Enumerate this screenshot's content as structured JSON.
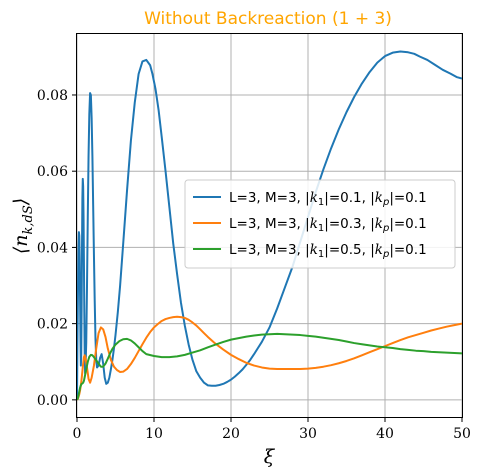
{
  "chart_data": {
    "type": "line",
    "title": "Without Backreaction (1 + 3)",
    "title_color": "#FFA500",
    "xlabel": "ξ",
    "ylabel": "⟨n_{k,dS}⟩",
    "xlim": [
      0,
      50
    ],
    "ylim": [
      -0.0045,
      0.096
    ],
    "x_ticks": [
      0,
      10,
      20,
      30,
      40,
      50
    ],
    "y_ticks": [
      0.0,
      0.02,
      0.04,
      0.06,
      0.08
    ],
    "x_tick_labels": [
      "0",
      "10",
      "20",
      "30",
      "40",
      "50"
    ],
    "y_tick_labels": [
      "0.00",
      "0.02",
      "0.04",
      "0.06",
      "0.08"
    ],
    "grid": true,
    "legend_position": "center-right",
    "series": [
      {
        "name": "L=3, M=3, |k_1|=0.1, |k_p|=0.1",
        "color": "#1f77b4",
        "x": [
          0,
          0.05,
          0.1,
          0.15,
          0.2,
          0.25,
          0.3,
          0.35,
          0.4,
          0.45,
          0.5,
          0.55,
          0.6,
          0.65,
          0.7,
          0.75,
          0.8,
          0.85,
          0.9,
          0.95,
          1.0,
          1.05,
          1.1,
          1.2,
          1.3,
          1.4,
          1.5,
          1.6,
          1.7,
          1.8,
          1.9,
          2.0,
          2.1,
          2.2,
          2.3,
          2.4,
          2.5,
          2.6,
          2.8,
          3.0,
          3.2,
          3.4,
          3.6,
          3.8,
          4.0,
          4.2,
          4.4,
          4.6,
          4.8,
          5.0,
          5.3,
          5.6,
          6.0,
          6.5,
          7.0,
          7.5,
          8.0,
          8.5,
          9.0,
          9.5,
          9.8,
          10.2,
          10.6,
          11.0,
          11.5,
          12.0,
          12.5,
          13.0,
          13.5,
          14.0,
          14.5,
          15.0,
          15.5,
          16.0,
          16.5,
          17.0,
          17.5,
          18.0,
          18.5,
          19.0,
          19.5,
          20.0,
          20.5,
          21.0,
          21.5,
          22.0,
          22.5,
          23.0,
          23.5,
          24.0,
          25.0,
          26.0,
          27.0,
          28.0,
          29.0,
          30.0,
          31.0,
          32.0,
          33.0,
          34.0,
          35.0,
          36.0,
          37.0,
          38.0,
          39.0,
          40.0,
          41.0,
          42.0,
          43.0,
          43.8,
          44.5,
          45.5,
          46.5,
          47.5,
          48.5,
          49.3,
          50.0
        ],
        "y": [
          0.0,
          0.014,
          0.024,
          0.033,
          0.04,
          0.044,
          0.043,
          0.037,
          0.027,
          0.016,
          0.009,
          0.012,
          0.024,
          0.04,
          0.053,
          0.058,
          0.056,
          0.048,
          0.036,
          0.023,
          0.012,
          0.007,
          0.008,
          0.015,
          0.03,
          0.048,
          0.064,
          0.075,
          0.0805,
          0.08,
          0.074,
          0.064,
          0.051,
          0.038,
          0.026,
          0.016,
          0.0105,
          0.0085,
          0.009,
          0.011,
          0.012,
          0.0095,
          0.0058,
          0.0042,
          0.0045,
          0.0058,
          0.008,
          0.0105,
          0.0135,
          0.017,
          0.023,
          0.03,
          0.041,
          0.055,
          0.068,
          0.078,
          0.0855,
          0.0888,
          0.0892,
          0.0878,
          0.0855,
          0.0815,
          0.076,
          0.069,
          0.06,
          0.0505,
          0.041,
          0.033,
          0.0255,
          0.0195,
          0.0145,
          0.0105,
          0.0075,
          0.0058,
          0.0045,
          0.0038,
          0.0037,
          0.0037,
          0.0039,
          0.0042,
          0.0047,
          0.0053,
          0.0061,
          0.007,
          0.008,
          0.0092,
          0.0105,
          0.012,
          0.0136,
          0.0152,
          0.019,
          0.024,
          0.0295,
          0.035,
          0.0415,
          0.048,
          0.0545,
          0.0605,
          0.066,
          0.071,
          0.0755,
          0.0795,
          0.083,
          0.086,
          0.0885,
          0.0902,
          0.0911,
          0.0914,
          0.0912,
          0.0908,
          0.0901,
          0.0892,
          0.0879,
          0.0866,
          0.0856,
          0.0847,
          0.0843
        ]
      },
      {
        "name": "L=3, M=3, |k_1|=0.3, |k_p|=0.1",
        "color": "#ff7f0e",
        "x": [
          0,
          0.1,
          0.2,
          0.3,
          0.4,
          0.5,
          0.6,
          0.7,
          0.8,
          0.9,
          1.0,
          1.1,
          1.3,
          1.5,
          1.7,
          1.9,
          2.2,
          2.5,
          2.8,
          3.1,
          3.4,
          3.7,
          4.0,
          4.4,
          4.8,
          5.2,
          5.6,
          6.0,
          6.5,
          7.0,
          7.5,
          8.0,
          8.5,
          9.0,
          9.5,
          10.0,
          10.5,
          11.0,
          11.5,
          12.0,
          12.5,
          13.0,
          13.5,
          14.0,
          14.5,
          15.0,
          15.5,
          16.0,
          16.5,
          17.0,
          18.0,
          19.0,
          20.0,
          21.0,
          22.0,
          23.0,
          24.0,
          25.0,
          26.0,
          27.0,
          28.0,
          29.0,
          30.0,
          31.0,
          32.0,
          33.0,
          34.0,
          35.0,
          36.0,
          37.0,
          38.0,
          39.0,
          40.0,
          41.0,
          42.0,
          43.0,
          44.0,
          45.0,
          46.0,
          47.0,
          48.0,
          49.0,
          50.0
        ],
        "y": [
          0.0,
          0.0002,
          0.0008,
          0.0015,
          0.0025,
          0.0038,
          0.0055,
          0.0075,
          0.0095,
          0.0112,
          0.0117,
          0.011,
          0.0085,
          0.0055,
          0.0045,
          0.0058,
          0.009,
          0.0135,
          0.0175,
          0.019,
          0.0185,
          0.0165,
          0.0135,
          0.0105,
          0.0087,
          0.0078,
          0.0073,
          0.0074,
          0.0081,
          0.0094,
          0.011,
          0.0128,
          0.0146,
          0.0163,
          0.0178,
          0.019,
          0.0199,
          0.0207,
          0.0212,
          0.0215,
          0.0217,
          0.0218,
          0.0217,
          0.0215,
          0.021,
          0.0203,
          0.0195,
          0.0185,
          0.0175,
          0.0165,
          0.0147,
          0.0132,
          0.0118,
          0.0107,
          0.0097,
          0.009,
          0.0085,
          0.0082,
          0.0081,
          0.0081,
          0.0081,
          0.0081,
          0.0082,
          0.0084,
          0.0087,
          0.0091,
          0.0096,
          0.0102,
          0.0109,
          0.0117,
          0.0125,
          0.0133,
          0.0141,
          0.0149,
          0.0157,
          0.0164,
          0.017,
          0.0176,
          0.0182,
          0.0187,
          0.0192,
          0.0196,
          0.02
        ]
      },
      {
        "name": "L=3, M=3, |k_1|=0.5, |k_p|=0.1",
        "color": "#2ca02c",
        "x": [
          0,
          0.1,
          0.2,
          0.3,
          0.4,
          0.5,
          0.6,
          0.7,
          0.8,
          0.9,
          1.0,
          1.2,
          1.4,
          1.6,
          1.8,
          2.0,
          2.2,
          2.5,
          2.8,
          3.1,
          3.4,
          3.7,
          4.0,
          4.3,
          4.6,
          5.0,
          5.5,
          6.0,
          6.5,
          7.0,
          7.5,
          8.0,
          8.5,
          9.0,
          10.0,
          11.0,
          12.0,
          13.0,
          14.0,
          15.0,
          16.0,
          17.0,
          18.0,
          19.0,
          20.0,
          21.0,
          22.0,
          23.0,
          24.0,
          25.0,
          26.0,
          27.0,
          28.0,
          29.0,
          30.0,
          31.0,
          32.0,
          33.0,
          34.0,
          35.0,
          36.0,
          37.0,
          38.0,
          39.0,
          40.0,
          41.0,
          42.0,
          43.0,
          44.0,
          45.0,
          46.0,
          47.0,
          48.0,
          49.0,
          50.0
        ],
        "y": [
          0.0,
          0.0004,
          0.0012,
          0.0022,
          0.0032,
          0.0038,
          0.0042,
          0.0043,
          0.0045,
          0.005,
          0.006,
          0.008,
          0.01,
          0.0113,
          0.0118,
          0.0117,
          0.0112,
          0.0104,
          0.0095,
          0.0087,
          0.0087,
          0.0095,
          0.0108,
          0.0122,
          0.0134,
          0.0145,
          0.0154,
          0.0159,
          0.016,
          0.0156,
          0.0148,
          0.0138,
          0.0128,
          0.012,
          0.0115,
          0.0112,
          0.0112,
          0.0114,
          0.0118,
          0.0124,
          0.013,
          0.0138,
          0.0145,
          0.0152,
          0.0158,
          0.0162,
          0.0166,
          0.0169,
          0.0171,
          0.0172,
          0.0173,
          0.0172,
          0.0171,
          0.017,
          0.0168,
          0.0166,
          0.0163,
          0.016,
          0.0157,
          0.0153,
          0.0149,
          0.0146,
          0.0143,
          0.014,
          0.0138,
          0.0136,
          0.0133,
          0.0131,
          0.0129,
          0.0128,
          0.0126,
          0.0125,
          0.0124,
          0.0123,
          0.0122
        ]
      }
    ]
  }
}
